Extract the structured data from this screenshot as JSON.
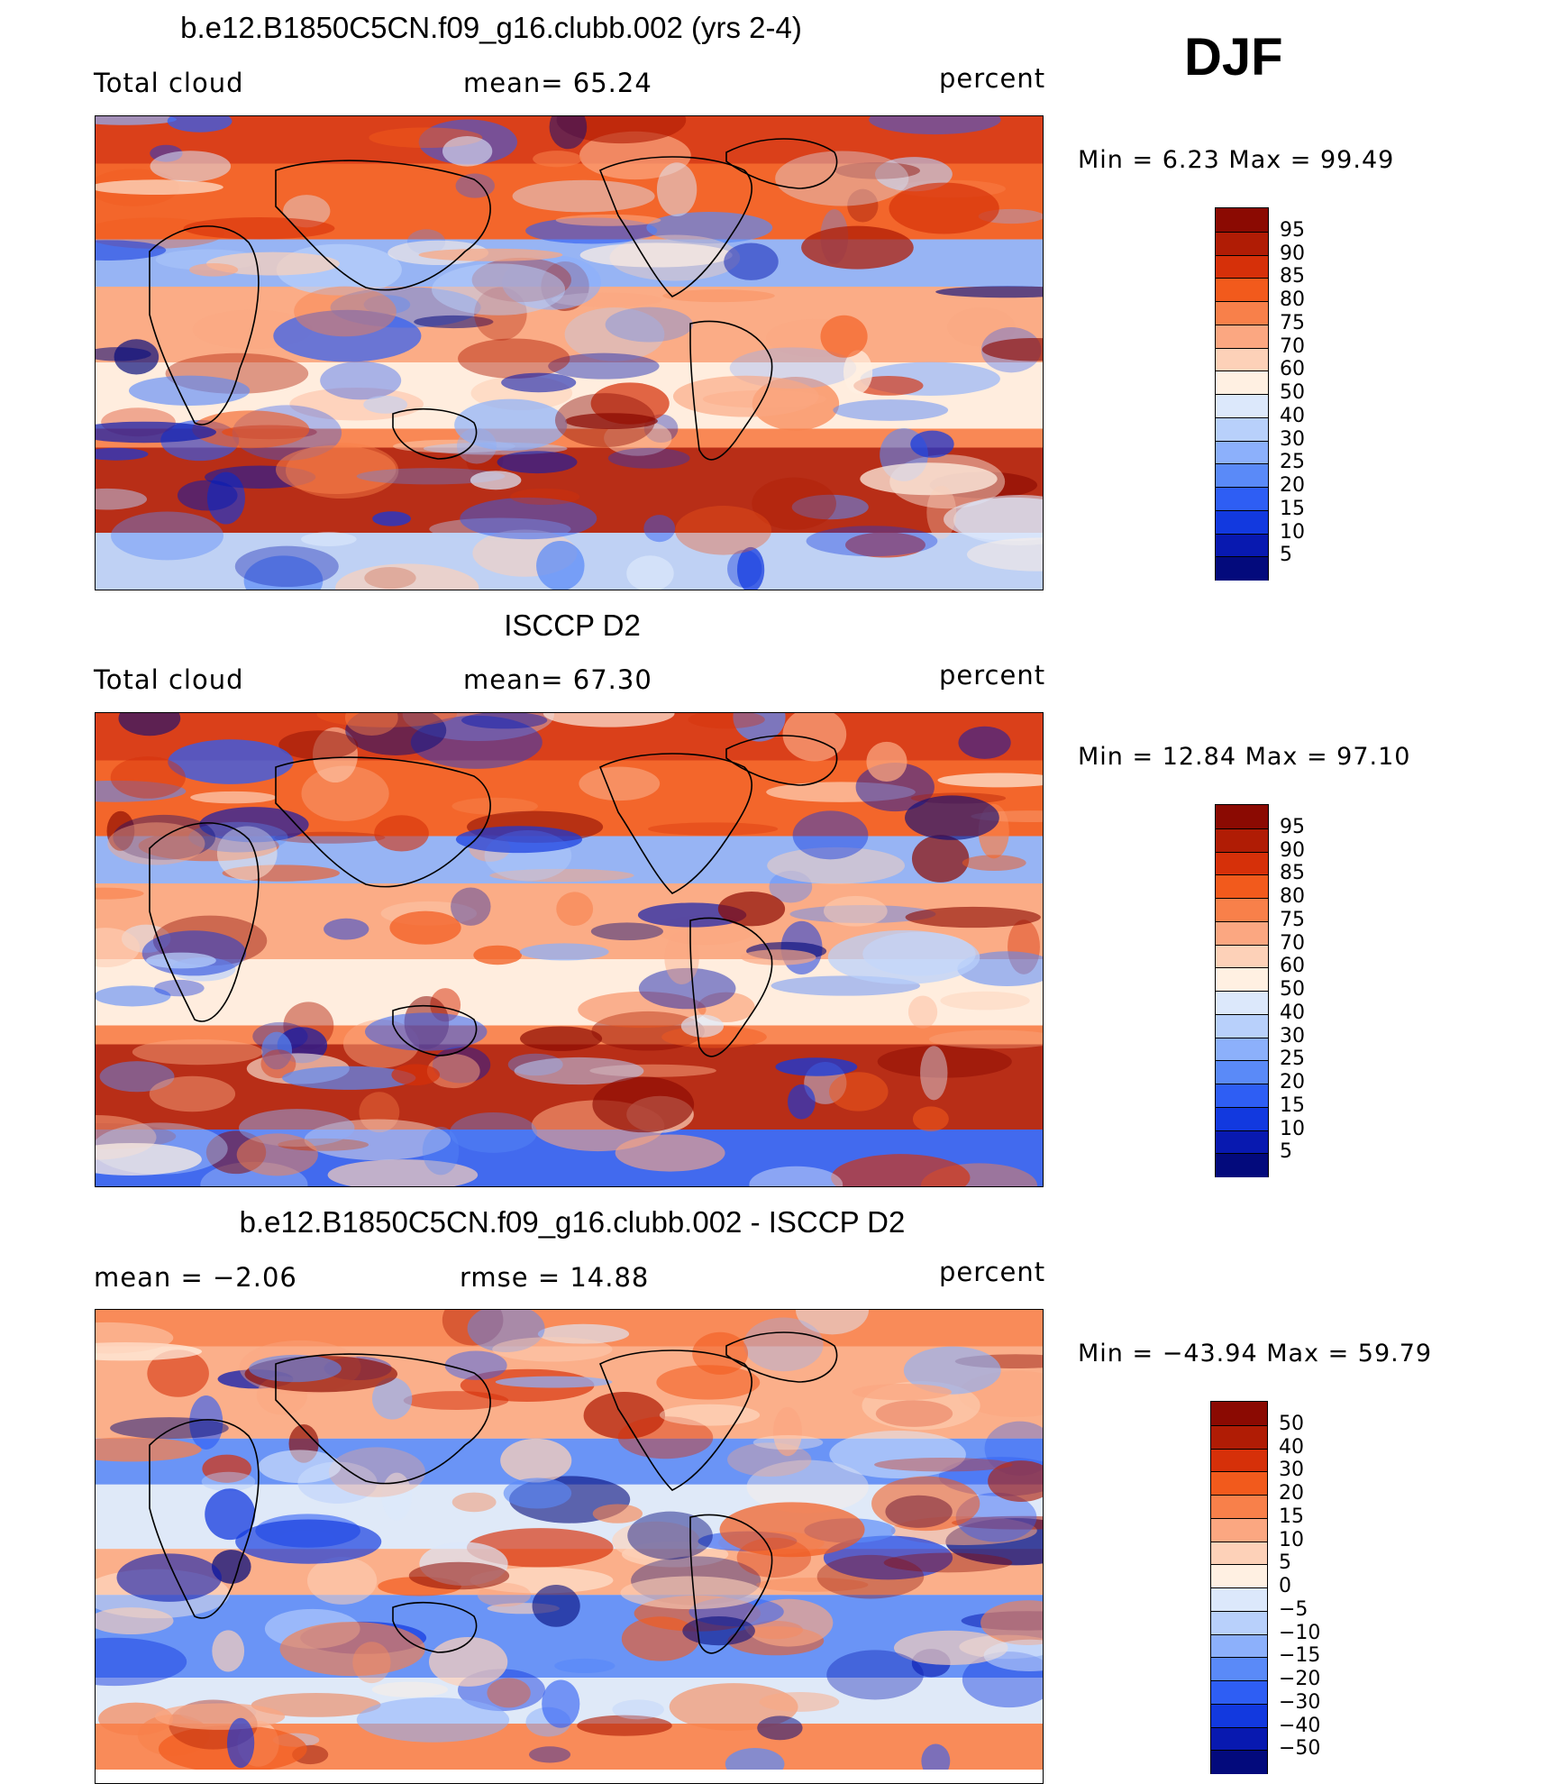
{
  "season": "DJF",
  "panels": [
    {
      "id": "model",
      "title": "b.e12.B1850C5CN.f09_g16.clubb.002 (yrs 2-4)",
      "left_label": "Total cloud",
      "center_label": "mean=   65.24",
      "right_label": "percent",
      "minmax": "Min =    6.23 Max =   99.49",
      "colorbar_labels": [
        "95",
        "90",
        "85",
        "80",
        "75",
        "70",
        "60",
        "50",
        "40",
        "30",
        "25",
        "20",
        "15",
        "10",
        "5"
      ],
      "colors": [
        "#8b0a02",
        "#b01c05",
        "#d63009",
        "#f25a1c",
        "#f8804a",
        "#fba781",
        "#fdd1b8",
        "#fff0e2",
        "#dce8fb",
        "#b8d0fb",
        "#8cb0fb",
        "#5a8af8",
        "#2e5ef4",
        "#1239df",
        "#0819b0",
        "#030a7c"
      ]
    },
    {
      "id": "obs",
      "title": "ISCCP D2",
      "left_label": "Total cloud",
      "center_label": "mean=   67.30",
      "right_label": "percent",
      "minmax": "Min =   12.84 Max =   97.10",
      "colorbar_labels": [
        "95",
        "90",
        "85",
        "80",
        "75",
        "70",
        "60",
        "50",
        "40",
        "30",
        "25",
        "20",
        "15",
        "10",
        "5"
      ],
      "colors": [
        "#8b0a02",
        "#b01c05",
        "#d63009",
        "#f25a1c",
        "#f8804a",
        "#fba781",
        "#fdd1b8",
        "#fff0e2",
        "#dce8fb",
        "#b8d0fb",
        "#8cb0fb",
        "#5a8af8",
        "#2e5ef4",
        "#1239df",
        "#0819b0",
        "#030a7c"
      ]
    },
    {
      "id": "diff",
      "title": "b.e12.B1850C5CN.f09_g16.clubb.002 - ISCCP D2",
      "left_label": "mean =   −2.06",
      "center_label": "rmse =   14.88",
      "right_label": "percent",
      "minmax": "Min = −43.94 Max =   59.79",
      "colorbar_labels": [
        "50",
        "40",
        "30",
        "20",
        "15",
        "10",
        "5",
        "0",
        "−5",
        "−10",
        "−15",
        "−20",
        "−30",
        "−40",
        "−50"
      ],
      "colors": [
        "#8b0a02",
        "#b01c05",
        "#d63009",
        "#f25a1c",
        "#f8804a",
        "#fba781",
        "#fdd1b8",
        "#fff0e2",
        "#dce8fb",
        "#b8d0fb",
        "#8cb0fb",
        "#5a8af8",
        "#2e5ef4",
        "#1239df",
        "#0819b0",
        "#030a7c"
      ]
    }
  ]
}
